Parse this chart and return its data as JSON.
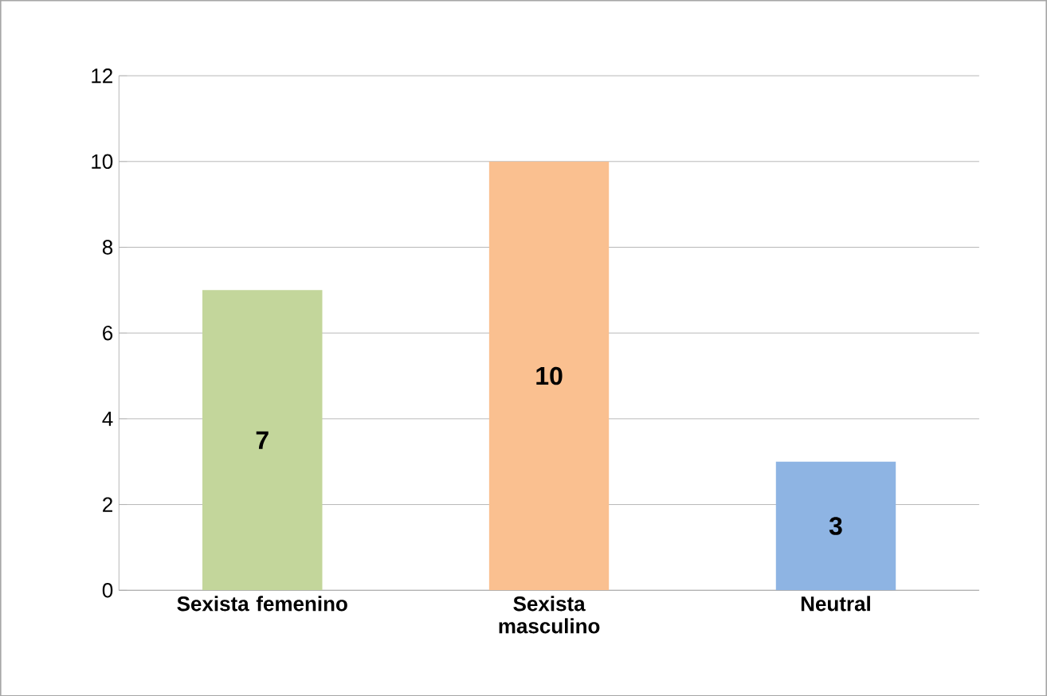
{
  "chart_data": {
    "type": "bar",
    "categories": [
      "Sexista femenino",
      "Sexista masculino",
      "Neutral"
    ],
    "values": [
      7,
      10,
      3
    ],
    "colors": [
      "#c3d69b",
      "#fac090",
      "#8eb4e3"
    ],
    "ylim": [
      0,
      12
    ],
    "yticks": [
      0,
      2,
      4,
      6,
      8,
      10,
      12
    ],
    "grid": "y",
    "data_labels": true
  }
}
